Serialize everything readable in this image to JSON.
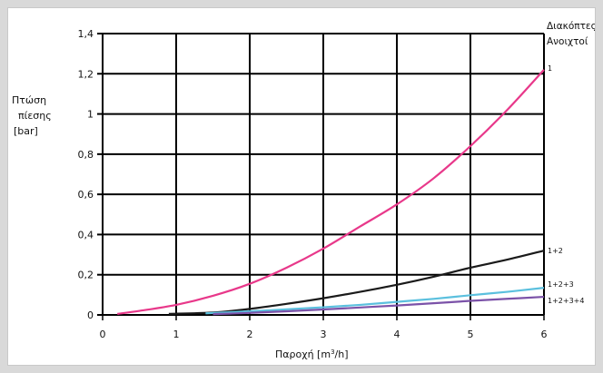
{
  "chart_data": {
    "type": "line",
    "ylabel_lines": [
      "Πτώση",
      "πίεσης",
      "[bar]"
    ],
    "xlabel_prefix": "Παροχή [m",
    "xlabel_sup": "3",
    "xlabel_suffix": "/h]",
    "legend_title_lines": [
      "Διακόπτες",
      "Ανοιχτοί"
    ],
    "xlim": [
      0,
      6
    ],
    "ylim": [
      0,
      1.4
    ],
    "xticks": [
      0,
      1,
      2,
      3,
      4,
      5,
      6
    ],
    "xtick_labels": [
      "0",
      "1",
      "2",
      "3",
      "4",
      "5",
      "6"
    ],
    "yticks": [
      0,
      0.2,
      0.4,
      0.6,
      0.8,
      1.0,
      1.2,
      1.4
    ],
    "ytick_labels": [
      "0",
      "0,2",
      "0,4",
      "0,6",
      "0,8",
      "1",
      "1,2",
      "1,4"
    ],
    "grid": true,
    "series": [
      {
        "name": "1",
        "color": "#e8388a",
        "x": [
          0.2,
          0.5,
          1.0,
          1.5,
          2.0,
          2.5,
          3.0,
          3.5,
          4.0,
          4.5,
          5.0,
          5.5,
          6.0
        ],
        "y": [
          0.005,
          0.02,
          0.05,
          0.095,
          0.155,
          0.235,
          0.33,
          0.44,
          0.55,
          0.68,
          0.84,
          1.02,
          1.22
        ]
      },
      {
        "name": "1+2",
        "color": "#1a1a1a",
        "x": [
          0.9,
          1.5,
          2.0,
          2.5,
          3.0,
          3.5,
          4.0,
          4.5,
          5.0,
          5.5,
          6.0
        ],
        "y": [
          0.005,
          0.012,
          0.03,
          0.055,
          0.083,
          0.115,
          0.15,
          0.19,
          0.235,
          0.275,
          0.32
        ]
      },
      {
        "name": "1+2+3",
        "color": "#5bc0de",
        "x": [
          1.4,
          2.0,
          2.5,
          3.0,
          3.5,
          4.0,
          4.5,
          5.0,
          5.5,
          6.0
        ],
        "y": [
          0.008,
          0.018,
          0.028,
          0.038,
          0.05,
          0.065,
          0.08,
          0.098,
          0.115,
          0.135
        ]
      },
      {
        "name": "1+2+3+4",
        "color": "#7b52a8",
        "x": [
          1.5,
          2.0,
          2.5,
          3.0,
          3.5,
          4.0,
          4.5,
          5.0,
          5.5,
          6.0
        ],
        "y": [
          0.004,
          0.01,
          0.018,
          0.027,
          0.037,
          0.047,
          0.058,
          0.07,
          0.08,
          0.09
        ]
      }
    ]
  }
}
